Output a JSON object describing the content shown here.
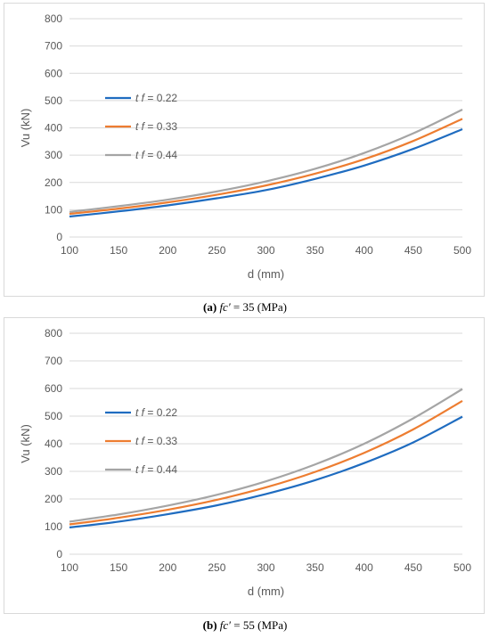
{
  "colors": {
    "series1": "#1f6cc0",
    "series2": "#ed7d31",
    "series3": "#a5a5a5",
    "grid": "#d9d9d9",
    "text": "#595959"
  },
  "captions": [
    {
      "letter": "(a)",
      "rest_italic": "fc′",
      "rest": " = 35 (MPa)"
    },
    {
      "letter": "(b)",
      "rest_italic": "fc′",
      "rest": " = 55 (MPa)"
    }
  ],
  "chart_data": [
    {
      "type": "line",
      "xlabel": "d (mm)",
      "ylabel": "Vu (kN)",
      "xlim": [
        100,
        500
      ],
      "ylim": [
        0,
        800
      ],
      "xticks": [
        100,
        150,
        200,
        250,
        300,
        350,
        400,
        450,
        500
      ],
      "yticks": [
        0,
        100,
        200,
        300,
        400,
        500,
        600,
        700,
        800
      ],
      "grid": "horizontal",
      "legend": "left-middle",
      "x": [
        100,
        150,
        200,
        250,
        300,
        350,
        400,
        450,
        500
      ],
      "series": [
        {
          "name": "t f = 0.22",
          "legend_italic": "t f",
          "legend_rest": " = 0.22",
          "values": [
            75,
            94,
            116,
            142,
            172,
            213,
            262,
            323,
            395
          ]
        },
        {
          "name": "t f = 0.33",
          "legend_italic": "t f",
          "legend_rest": " = 0.33",
          "values": [
            85,
            104,
            127,
            155,
            189,
            232,
            285,
            352,
            433
          ]
        },
        {
          "name": "t f = 0.44",
          "legend_italic": "t f",
          "legend_rest": " = 0.44",
          "values": [
            92,
            113,
            137,
            167,
            204,
            250,
            308,
            380,
            467
          ]
        }
      ]
    },
    {
      "type": "line",
      "xlabel": "d (mm)",
      "ylabel": "Vu (kN)",
      "xlim": [
        100,
        500
      ],
      "ylim": [
        0,
        800
      ],
      "xticks": [
        100,
        150,
        200,
        250,
        300,
        350,
        400,
        450,
        500
      ],
      "yticks": [
        0,
        100,
        200,
        300,
        400,
        500,
        600,
        700,
        800
      ],
      "grid": "horizontal",
      "legend": "left-middle",
      "x": [
        100,
        150,
        200,
        250,
        300,
        350,
        400,
        450,
        500
      ],
      "series": [
        {
          "name": "t f = 0.22",
          "legend_italic": "t f",
          "legend_rest": " = 0.22",
          "values": [
            97,
            118,
            145,
            177,
            218,
            268,
            330,
            405,
            498
          ]
        },
        {
          "name": "t f = 0.33",
          "legend_italic": "t f",
          "legend_rest": " = 0.33",
          "values": [
            108,
            132,
            161,
            197,
            242,
            298,
            367,
            452,
            555
          ]
        },
        {
          "name": "t f = 0.44",
          "legend_italic": "t f",
          "legend_rest": " = 0.44",
          "values": [
            118,
            144,
            176,
            215,
            264,
            325,
            400,
            492,
            598
          ]
        }
      ]
    }
  ]
}
